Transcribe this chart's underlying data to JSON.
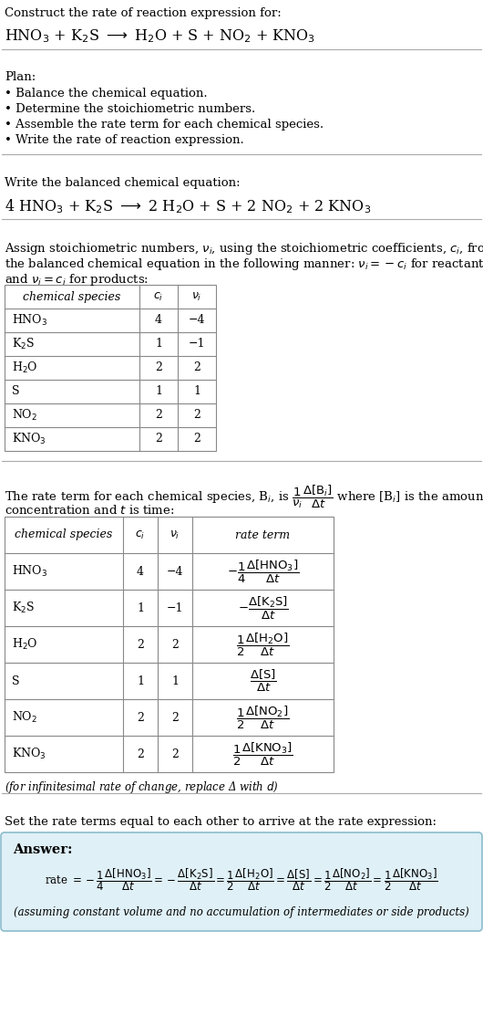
{
  "bg_color": "#ffffff",
  "text_color": "#000000",
  "title_line1": "Construct the rate of reaction expression for:",
  "plan_header": "Plan:",
  "plan_items": [
    "• Balance the chemical equation.",
    "• Determine the stoichiometric numbers.",
    "• Assemble the rate term for each chemical species.",
    "• Write the rate of reaction expression."
  ],
  "balanced_header": "Write the balanced chemical equation:",
  "stoich_intro_line1": "Assign stoichiometric numbers, $\\nu_i$, using the stoichiometric coefficients, $c_i$, from",
  "stoich_intro_line2": "the balanced chemical equation in the following manner: $\\nu_i = -c_i$ for reactants",
  "stoich_intro_line3": "and $\\nu_i = c_i$ for products:",
  "table1_headers": [
    "chemical species",
    "$c_i$",
    "$\\nu_i$"
  ],
  "table1_rows": [
    [
      "HNO$_3$",
      "4",
      "−4"
    ],
    [
      "K$_2$S",
      "1",
      "−1"
    ],
    [
      "H$_2$O",
      "2",
      "2"
    ],
    [
      "S",
      "1",
      "1"
    ],
    [
      "NO$_2$",
      "2",
      "2"
    ],
    [
      "KNO$_3$",
      "2",
      "2"
    ]
  ],
  "rate_term_intro_line1": "The rate term for each chemical species, B$_i$, is $\\dfrac{1}{\\nu_i}\\dfrac{\\Delta[\\mathrm{B}_i]}{\\Delta t}$ where [B$_i$] is the amount",
  "rate_term_intro_line2": "concentration and $t$ is time:",
  "table2_headers": [
    "chemical species",
    "$c_i$",
    "$\\nu_i$",
    "rate term"
  ],
  "table2_rows": [
    [
      "HNO$_3$",
      "4",
      "−4",
      "$-\\dfrac{1}{4}\\dfrac{\\Delta[\\mathrm{HNO_3}]}{\\Delta t}$"
    ],
    [
      "K$_2$S",
      "1",
      "−1",
      "$-\\dfrac{\\Delta[\\mathrm{K_2S}]}{\\Delta t}$"
    ],
    [
      "H$_2$O",
      "2",
      "2",
      "$\\dfrac{1}{2}\\dfrac{\\Delta[\\mathrm{H_2O}]}{\\Delta t}$"
    ],
    [
      "S",
      "1",
      "1",
      "$\\dfrac{\\Delta[\\mathrm{S}]}{\\Delta t}$"
    ],
    [
      "NO$_2$",
      "2",
      "2",
      "$\\dfrac{1}{2}\\dfrac{\\Delta[\\mathrm{NO_2}]}{\\Delta t}$"
    ],
    [
      "KNO$_3$",
      "2",
      "2",
      "$\\dfrac{1}{2}\\dfrac{\\Delta[\\mathrm{KNO_3}]}{\\Delta t}$"
    ]
  ],
  "infinitesimal_note": "(for infinitesimal rate of change, replace Δ with $d$)",
  "set_equal_text": "Set the rate terms equal to each other to arrive at the rate expression:",
  "answer_label": "Answer:",
  "answer_box_color": "#dff0f7",
  "answer_box_border": "#8bbccc",
  "answer_footnote": "(assuming constant volume and no accumulation of intermediates or side products)"
}
